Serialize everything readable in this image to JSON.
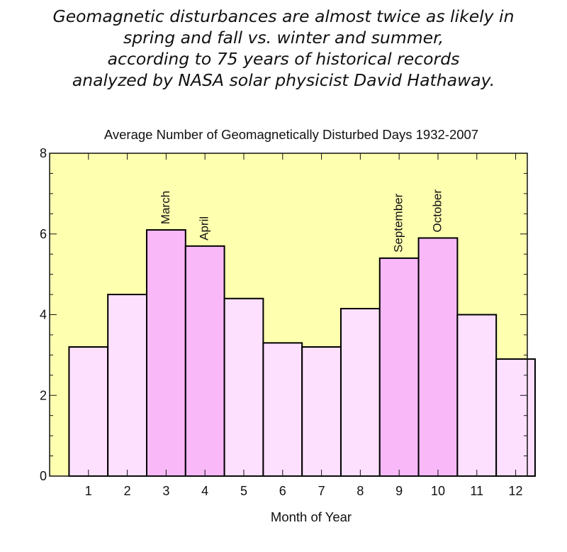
{
  "headline": [
    "Geomagnetic disturbances are almost twice as likely in",
    "spring and fall vs. winter and summer,",
    "according to 75 years of historical records",
    "analyzed by NASA solar physicist  David Hathaway."
  ],
  "chart_data": {
    "type": "bar",
    "title": "Average Number of Geomagnetically Disturbed Days 1932-2007",
    "xlabel": "Month of Year",
    "ylabel": "",
    "categories": [
      "1",
      "2",
      "3",
      "4",
      "5",
      "6",
      "7",
      "8",
      "9",
      "10",
      "11",
      "12"
    ],
    "values": [
      3.2,
      4.5,
      6.1,
      5.7,
      4.4,
      3.3,
      3.2,
      4.15,
      5.4,
      5.9,
      4.0,
      2.9
    ],
    "bar_labels": [
      "",
      "",
      "March",
      "April",
      "",
      "",
      "",
      "",
      "September",
      "October",
      "",
      ""
    ],
    "highlighted": [
      false,
      false,
      true,
      true,
      false,
      false,
      false,
      false,
      true,
      true,
      false,
      false
    ],
    "ylim": [
      0,
      8
    ],
    "xlim": [
      0,
      12.3
    ],
    "yticks": [
      0,
      2,
      4,
      6,
      8
    ],
    "legend": "none",
    "grid": false,
    "colors": {
      "plot_background": "#ffffb0",
      "bar_normal": "#fde0fd",
      "bar_highlight": "#f9b9f9",
      "bar_edge": "#000000",
      "frame": "#111111"
    }
  }
}
